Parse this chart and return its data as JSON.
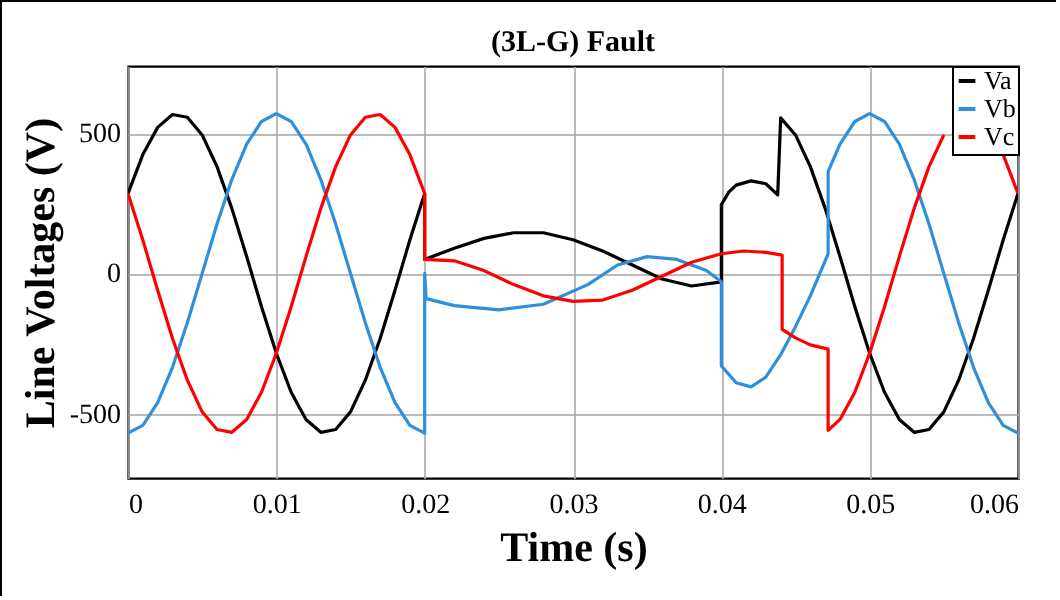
{
  "chart_data": {
    "type": "line",
    "title": "(3L-G) Fault",
    "xlabel": "Time (s)",
    "ylabel": "Line Voltages (V)",
    "xlim": [
      0,
      0.06
    ],
    "xticks": [
      0,
      0.01,
      0.02,
      0.03,
      0.04,
      0.05,
      0.06
    ],
    "ylim": [
      -730,
      740
    ],
    "yticks": [
      -500,
      0,
      500
    ],
    "grid": true,
    "legend": "top right",
    "line_style": "solid",
    "marker": "none",
    "series": [
      {
        "name": "Va",
        "color": "#000000",
        "x": [
          0,
          0.001,
          0.002,
          0.003,
          0.004,
          0.005,
          0.006,
          0.007,
          0.008,
          0.009,
          0.01,
          0.011,
          0.012,
          0.013,
          0.014,
          0.015,
          0.016,
          0.017,
          0.018,
          0.019,
          0.02,
          0.02,
          0.022,
          0.024,
          0.026,
          0.028,
          0.03,
          0.032,
          0.034,
          0.036,
          0.038,
          0.04,
          0.04,
          0.0405,
          0.041,
          0.042,
          0.043,
          0.0438,
          0.044,
          0.045,
          0.046,
          0.047,
          0.048,
          0.049,
          0.05,
          0.051,
          0.052,
          0.053,
          0.054,
          0.055,
          0.056,
          0.057,
          0.058,
          0.059,
          0.06
        ],
        "values": [
          285,
          424,
          521,
          567,
          557,
          494,
          381,
          232,
          60,
          -119,
          -285,
          -424,
          -521,
          -567,
          -557,
          -494,
          -381,
          -232,
          -60,
          119,
          285,
          50,
          90,
          125,
          145,
          145,
          120,
          80,
          30,
          -20,
          -45,
          -30,
          245,
          290,
          315,
          330,
          320,
          280,
          555,
          494,
          381,
          232,
          60,
          -119,
          -285,
          -424,
          -521,
          -567,
          -557,
          -494,
          -381,
          -232,
          -60,
          119,
          285
        ]
      },
      {
        "name": "Vb",
        "color": "#2e8fdc",
        "x": [
          0,
          0.001,
          0.002,
          0.003,
          0.004,
          0.005,
          0.006,
          0.007,
          0.008,
          0.009,
          0.01,
          0.011,
          0.012,
          0.013,
          0.014,
          0.015,
          0.016,
          0.017,
          0.018,
          0.019,
          0.02,
          0.02,
          0.0201,
          0.022,
          0.025,
          0.028,
          0.031,
          0.033,
          0.035,
          0.037,
          0.039,
          0.04,
          0.04,
          0.041,
          0.042,
          0.043,
          0.044,
          0.045,
          0.046,
          0.0472,
          0.0472,
          0.048,
          0.049,
          0.05,
          0.051,
          0.052,
          0.053,
          0.054,
          0.055,
          0.056,
          0.057,
          0.058,
          0.059,
          0.06
        ],
        "values": [
          -570,
          -542,
          -461,
          -335,
          -176,
          0,
          176,
          335,
          461,
          542,
          570,
          542,
          461,
          335,
          176,
          0,
          -176,
          -335,
          -461,
          -542,
          -570,
          0,
          -90,
          -115,
          -130,
          -110,
          -40,
          30,
          60,
          50,
          10,
          -30,
          -330,
          -390,
          -405,
          -370,
          -290,
          -190,
          -80,
          70,
          363,
          461,
          542,
          570,
          542,
          461,
          335,
          176,
          0,
          -176,
          -335,
          -461,
          -542,
          -570
        ]
      },
      {
        "name": "Vc",
        "color": "#ff0000",
        "x": [
          0,
          0.001,
          0.002,
          0.003,
          0.004,
          0.005,
          0.006,
          0.007,
          0.008,
          0.009,
          0.01,
          0.011,
          0.012,
          0.013,
          0.014,
          0.015,
          0.016,
          0.017,
          0.018,
          0.019,
          0.02,
          0.02,
          0.022,
          0.024,
          0.026,
          0.028,
          0.03,
          0.032,
          0.034,
          0.036,
          0.038,
          0.04,
          0.0415,
          0.043,
          0.0441,
          0.0441,
          0.045,
          0.046,
          0.0472,
          0.0472,
          0.048,
          0.049,
          0.05,
          0.051,
          0.052,
          0.053,
          0.054,
          0.055,
          0.056,
          0.057,
          0.058,
          0.059,
          0.06
        ],
        "values": [
          285,
          119,
          -60,
          -232,
          -381,
          -494,
          -557,
          -567,
          -521,
          -424,
          -285,
          -119,
          60,
          232,
          381,
          494,
          557,
          567,
          521,
          424,
          285,
          50,
          45,
          10,
          -40,
          -80,
          -100,
          -95,
          -60,
          -10,
          40,
          70,
          80,
          75,
          65,
          -200,
          -230,
          -255,
          -270,
          -560,
          -521,
          -424,
          -285,
          -119,
          60,
          232,
          381,
          494,
          null,
          null,
          null,
          424,
          285
        ]
      }
    ]
  }
}
